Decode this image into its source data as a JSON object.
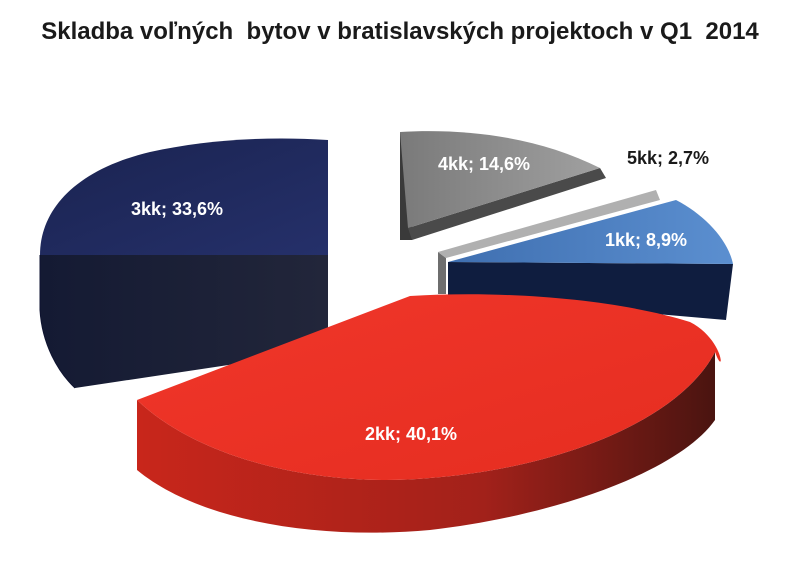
{
  "chart_data": {
    "type": "pie",
    "title": "Skladba voľných  bytov v bratislavských projektoch v Q1  2014",
    "slices": [
      {
        "name": "1kk",
        "value": 8.9,
        "label": "1kk; 8,9%",
        "color": "#4f81bd"
      },
      {
        "name": "2kk",
        "value": 40.1,
        "label": "2kk; 40,1%",
        "color": "#ee3224"
      },
      {
        "name": "3kk",
        "value": 33.6,
        "label": "3kk; 33,6%",
        "color": "#1f2a5c"
      },
      {
        "name": "4kk",
        "value": 14.6,
        "label": "4kk; 14,6%",
        "color": "#8c8c8c"
      },
      {
        "name": "5kk",
        "value": 2.7,
        "label": "5kk; 2,7%",
        "color": "#a6a6a6"
      }
    ],
    "style": "3d-exploded",
    "legend": "none"
  }
}
